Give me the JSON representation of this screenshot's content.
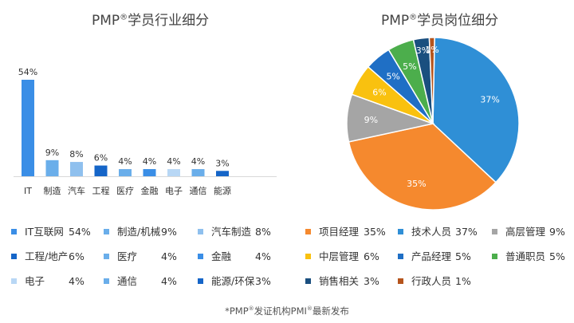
{
  "titles": {
    "left_main": "PMP",
    "left_sup": "®",
    "left_rest": "学员行业细分",
    "right_main": "PMP",
    "right_sup": "®",
    "right_rest": "学员岗位细分"
  },
  "chart_data": [
    {
      "type": "bar",
      "title": "PMP®学员行业细分",
      "categories": [
        "IT",
        "制造",
        "汽车",
        "工程",
        "医疗",
        "金融",
        "电子",
        "通信",
        "能源"
      ],
      "values": [
        54,
        9,
        8,
        6,
        4,
        4,
        4,
        4,
        3
      ],
      "labels": [
        "54%",
        "9%",
        "8%",
        "6%",
        "4%",
        "4%",
        "4%",
        "4%",
        "3%"
      ],
      "colors": [
        "#3a8ee6",
        "#6aaeea",
        "#8fc0ee",
        "#1565c8",
        "#6aaeea",
        "#3a8ee6",
        "#b8d7f5",
        "#6aaeea",
        "#1565c8"
      ],
      "ylim": [
        0,
        54
      ],
      "xlabel": "",
      "ylabel": "",
      "legend": [
        {
          "label": "IT互联网",
          "value": "54%",
          "color": "#3a8ee6"
        },
        {
          "label": "制造/机械",
          "value": "9%",
          "color": "#6aaeea"
        },
        {
          "label": "汽车制造",
          "value": "8%",
          "color": "#8fc0ee"
        },
        {
          "label": "工程/地产",
          "value": "6%",
          "color": "#1565c8"
        },
        {
          "label": "医疗",
          "value": "4%",
          "color": "#6aaeea"
        },
        {
          "label": "金融",
          "value": "4%",
          "color": "#3a8ee6"
        },
        {
          "label": "电子",
          "value": "4%",
          "color": "#b8d7f5"
        },
        {
          "label": "通信",
          "value": "4%",
          "color": "#6aaeea"
        },
        {
          "label": "能源/环保",
          "value": "3%",
          "color": "#1565c8"
        }
      ]
    },
    {
      "type": "pie",
      "title": "PMP®学员岗位细分",
      "slices": [
        {
          "name": "技术人员",
          "value": 37,
          "label": "37%",
          "color": "#2f8fd6"
        },
        {
          "name": "项目经理",
          "value": 35,
          "label": "35%",
          "color": "#f5892e"
        },
        {
          "name": "高层管理",
          "value": 9,
          "label": "9%",
          "color": "#a5a5a5"
        },
        {
          "name": "中层管理",
          "value": 6,
          "label": "6%",
          "color": "#f9c10f"
        },
        {
          "name": "产品经理",
          "value": 5,
          "label": "5%",
          "color": "#1f6fc5"
        },
        {
          "name": "普通职员",
          "value": 5,
          "label": "5%",
          "color": "#4cae4c"
        },
        {
          "name": "销售相关",
          "value": 3,
          "label": "3%",
          "color": "#1a4f7f"
        },
        {
          "name": "行政人员",
          "value": 1,
          "label": "1%",
          "color": "#b5541c"
        }
      ],
      "legend": [
        {
          "label": "项目经理",
          "value": "35%",
          "color": "#f5892e"
        },
        {
          "label": "技术人员",
          "value": "37%",
          "color": "#2f8fd6"
        },
        {
          "label": "高层管理",
          "value": "9%",
          "color": "#a5a5a5"
        },
        {
          "label": "中层管理",
          "value": "6%",
          "color": "#f9c10f"
        },
        {
          "label": "产品经理",
          "value": "5%",
          "color": "#1f6fc5"
        },
        {
          "label": "普通职员",
          "value": "5%",
          "color": "#4cae4c"
        },
        {
          "label": "销售相关",
          "value": "3%",
          "color": "#1a4f7f"
        },
        {
          "label": "行政人员",
          "value": "1%",
          "color": "#b5541c"
        }
      ]
    }
  ],
  "footnote": {
    "prefix": "*PMP",
    "sup1": "®",
    "middle": "发证机构PMI",
    "sup2": "®",
    "suffix": "最新发布"
  }
}
